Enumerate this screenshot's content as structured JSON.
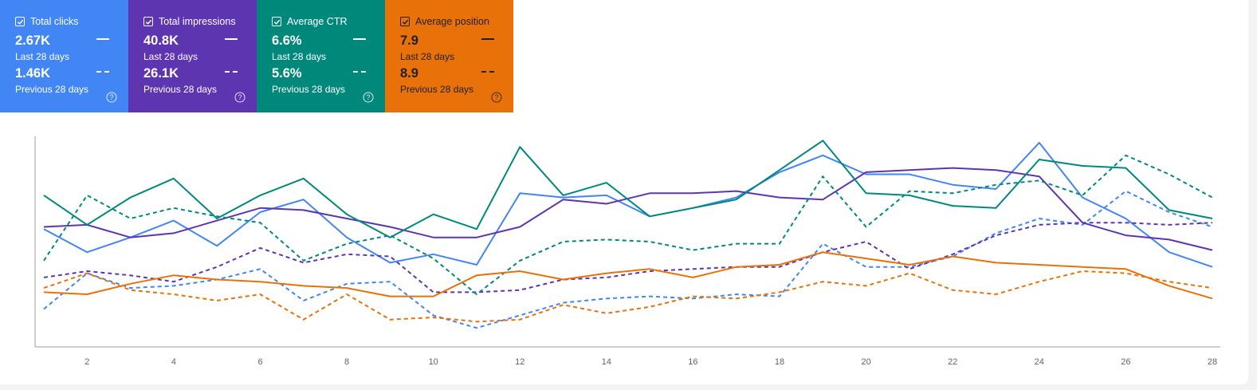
{
  "metrics": [
    {
      "id": "clicks",
      "title": "Total clicks",
      "color": "#4285f4",
      "current": "2.67K",
      "current_label": "Last 28 days",
      "previous": "1.46K",
      "previous_label": "Previous 28 days"
    },
    {
      "id": "impressions",
      "title": "Total impressions",
      "color": "#5e35b1",
      "current": "40.8K",
      "current_label": "Last 28 days",
      "previous": "26.1K",
      "previous_label": "Previous 28 days"
    },
    {
      "id": "ctr",
      "title": "Average CTR",
      "color": "#00897b",
      "current": "6.6%",
      "current_label": "Last 28 days",
      "previous": "5.6%",
      "previous_label": "Previous 28 days"
    },
    {
      "id": "position",
      "title": "Average position",
      "color": "#e8710a",
      "current": "7.9",
      "current_label": "Last 28 days",
      "previous": "8.9",
      "previous_label": "Previous 28 days"
    }
  ],
  "chart_data": {
    "type": "line",
    "x": [
      1,
      2,
      3,
      4,
      5,
      6,
      7,
      8,
      9,
      10,
      11,
      12,
      13,
      14,
      15,
      16,
      17,
      18,
      19,
      20,
      21,
      22,
      23,
      24,
      25,
      26,
      27,
      28
    ],
    "xticks": [
      2,
      4,
      6,
      8,
      10,
      12,
      14,
      16,
      18,
      20,
      22,
      24,
      26,
      28
    ],
    "ylim": [
      0,
      100
    ],
    "grid": false,
    "series": [
      {
        "metric": "clicks",
        "dashed": false,
        "color": "#4285f4",
        "values": [
          56,
          45,
          52,
          60,
          48,
          64,
          70,
          52,
          40,
          44,
          39,
          73,
          71,
          72,
          62,
          66,
          71,
          83,
          91,
          82,
          82,
          77,
          75,
          97,
          71,
          61,
          45,
          38
        ]
      },
      {
        "metric": "clicks",
        "dashed": true,
        "color": "#4285f4",
        "values": [
          18,
          35,
          28,
          29,
          32,
          37,
          22,
          30,
          31,
          15,
          9,
          15,
          21,
          23,
          24,
          23,
          25,
          24,
          49,
          38,
          38,
          43,
          54,
          61,
          58,
          74,
          64,
          57
        ]
      },
      {
        "metric": "impressions",
        "dashed": false,
        "color": "#5e35b1",
        "values": [
          57,
          58,
          52,
          54,
          60,
          66,
          65,
          61,
          57,
          52,
          52,
          57,
          70,
          68,
          73,
          73,
          74,
          71,
          70,
          83,
          84,
          85,
          84,
          81,
          59,
          53,
          51,
          46
        ]
      },
      {
        "metric": "impressions",
        "dashed": true,
        "color": "#5e35b1",
        "values": [
          33,
          36,
          34,
          31,
          38,
          47,
          40,
          44,
          43,
          26,
          26,
          27,
          32,
          33,
          36,
          37,
          38,
          38,
          45,
          50,
          37,
          44,
          53,
          58,
          59,
          59,
          58,
          59
        ]
      },
      {
        "metric": "ctr",
        "dashed": false,
        "color": "#00897b",
        "values": [
          72,
          58,
          71,
          80,
          61,
          72,
          80,
          63,
          52,
          63,
          56,
          95,
          72,
          78,
          62,
          66,
          70,
          84,
          98,
          73,
          72,
          67,
          66,
          89,
          86,
          85,
          65,
          61
        ]
      },
      {
        "metric": "ctr",
        "dashed": true,
        "color": "#00897b",
        "values": [
          41,
          72,
          61,
          66,
          62,
          59,
          41,
          49,
          53,
          42,
          25,
          41,
          50,
          51,
          50,
          46,
          49,
          49,
          81,
          57,
          74,
          73,
          77,
          79,
          72,
          91,
          82,
          71
        ]
      },
      {
        "metric": "position",
        "dashed": false,
        "color": "#e8710a",
        "values": [
          26,
          25,
          30,
          34,
          32,
          31,
          29,
          28,
          24,
          24,
          34,
          36,
          32,
          35,
          37,
          33,
          38,
          39,
          45,
          42,
          39,
          43,
          40,
          39,
          38,
          37,
          29,
          23
        ]
      },
      {
        "metric": "position",
        "dashed": true,
        "color": "#e8710a",
        "values": [
          28,
          35,
          27,
          25,
          22,
          25,
          13,
          25,
          13,
          14,
          12,
          13,
          20,
          16,
          19,
          24,
          23,
          26,
          31,
          29,
          35,
          27,
          25,
          31,
          36,
          35,
          31,
          28
        ]
      }
    ]
  }
}
